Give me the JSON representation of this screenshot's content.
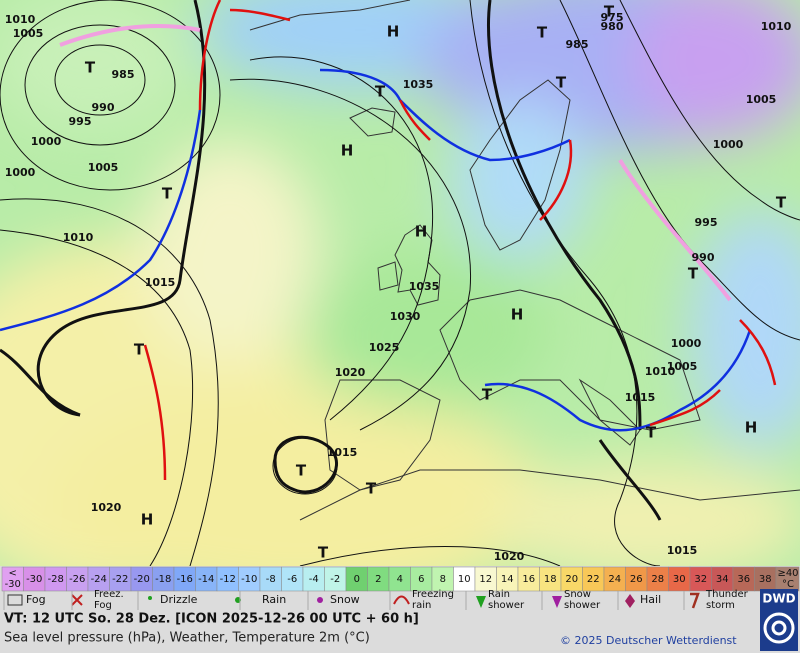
{
  "map": {
    "pressure_labels": [
      "1010",
      "1005",
      "985",
      "990",
      "995",
      "1000",
      "1005",
      "1000",
      "1010",
      "1015",
      "1035",
      "1035",
      "1030",
      "1025",
      "1020",
      "1015",
      "1020",
      "1020",
      "1015",
      "1015",
      "1010",
      "1005",
      "1000",
      "995",
      "990",
      "985",
      "980",
      "975",
      "1010",
      "1005",
      "1000"
    ],
    "centers": [
      "T",
      "T",
      "T",
      "H",
      "H",
      "T",
      "H",
      "T",
      "T",
      "H",
      "H",
      "T",
      "T",
      "H",
      "T",
      "T",
      "T",
      "T",
      "T",
      "T"
    ]
  },
  "color_scale": {
    "low_label": [
      "<",
      "-30"
    ],
    "values": [
      -30,
      -28,
      -26,
      -24,
      -22,
      -20,
      -18,
      -16,
      -14,
      -12,
      -10,
      -8,
      -6,
      -4,
      -2,
      0,
      2,
      4,
      6,
      8,
      10,
      12,
      14,
      16,
      18,
      20,
      22,
      24,
      26,
      28,
      30,
      32,
      34,
      36,
      38
    ],
    "colors": [
      "#d890e8",
      "#d098f0",
      "#c8a0f0",
      "#b8a0f0",
      "#a8a0f0",
      "#9898f0",
      "#8aa0f0",
      "#80a8f8",
      "#88b4f8",
      "#90c0ff",
      "#a0ccff",
      "#a8daf8",
      "#b0e4f8",
      "#b8eef0",
      "#c0f4e8",
      "#70d070",
      "#80dc80",
      "#90e490",
      "#a8eca0",
      "#c0f4b0",
      "#ffffff",
      "#f8f8d0",
      "#f8f4b8",
      "#f8ec9c",
      "#f8e480",
      "#f8d868",
      "#f8c858",
      "#f4b050",
      "#f09848",
      "#ec8048",
      "#e86848",
      "#d85858",
      "#c85858",
      "#b86858",
      "#a87060"
    ],
    "high_label": [
      "≥40",
      "°C"
    ],
    "low_color": "#e0a0f0",
    "high_color": "#a88070"
  },
  "weather_legend": [
    [
      "Fog"
    ],
    [
      "Freez.",
      "Fog"
    ],
    [
      "Drizzle"
    ],
    [
      "Rain"
    ],
    [
      "Snow"
    ],
    [
      "Freezing",
      "rain"
    ],
    [
      "Rain",
      "shower"
    ],
    [
      "Snow",
      "shower"
    ],
    [
      "Hail"
    ],
    [
      "Thunder",
      "storm"
    ]
  ],
  "footer": {
    "valid_time": "VT: 12 UTC So.  28 Dez. [ICON 2025-12-26  00 UTC + 60 h]",
    "description": "Sea level pressure (hPa), Weather, Temperature 2m (°C)",
    "copyright": "© 2025 Deutscher Wetterdienst",
    "logo": "DWD"
  }
}
